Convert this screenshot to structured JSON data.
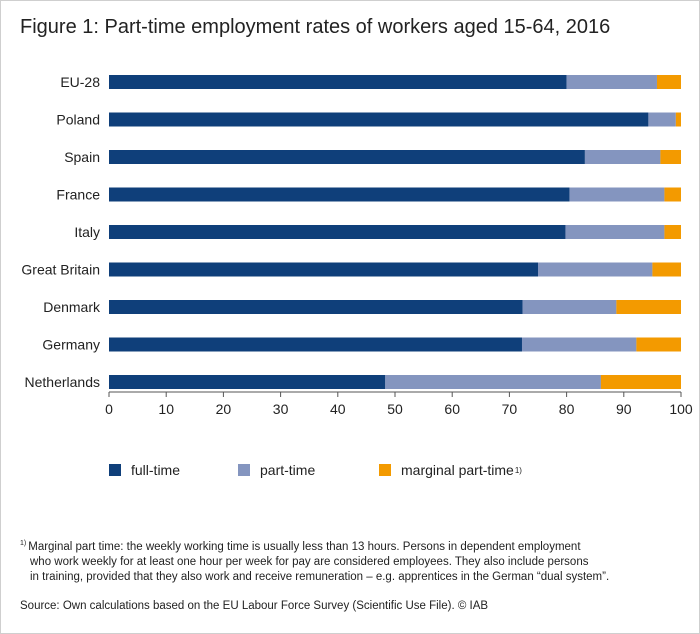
{
  "title": "Figure 1: Part-time employment rates of workers aged 15-64, 2016",
  "colors": {
    "full_time": "#0f3f7a",
    "part_time": "#8495bf",
    "marginal": "#f39a00",
    "axis": "#555555"
  },
  "chart_data": {
    "type": "bar",
    "orientation": "horizontal",
    "stacked": true,
    "categories": [
      "EU-28",
      "Poland",
      "Spain",
      "France",
      "Italy",
      "Great Britain",
      "Denmark",
      "Germany",
      "Netherlands"
    ],
    "series": [
      {
        "name": "full-time",
        "values": [
          80,
          94.3,
          83.2,
          80.5,
          79.8,
          75.0,
          72.3,
          72.2,
          48.3
        ]
      },
      {
        "name": "part-time",
        "values": [
          15.8,
          4.8,
          13.2,
          16.6,
          17.3,
          20.0,
          16.4,
          20.0,
          37.7
        ]
      },
      {
        "name": "marginal part-time",
        "values": [
          4.2,
          0.9,
          3.6,
          2.9,
          2.9,
          5.0,
          11.3,
          7.8,
          14.0
        ]
      }
    ],
    "xlim": [
      0,
      100
    ],
    "xticks": [
      "0",
      "10",
      "20",
      "30",
      "40",
      "50",
      "60",
      "70",
      "80",
      "90",
      "100"
    ],
    "grid": false,
    "legend_position": "bottom"
  },
  "legend": {
    "full_time": "full-time",
    "part_time": "part-time",
    "marginal": "marginal part-time",
    "marginal_sup": "1)"
  },
  "footnote": {
    "mark": "1)",
    "line1": "Marginal part time: the weekly working time is usually less than 13 hours. Persons in dependent employment",
    "line2": "who work weekly for at least one hour per week for pay are considered employees. They also include persons",
    "line3": "in training, provided that they also work and receive remuneration – e.g. apprentices in the German “dual system”."
  },
  "source": "Source: Own calculations based on the EU Labour Force Survey (Scientific Use File). © IAB"
}
